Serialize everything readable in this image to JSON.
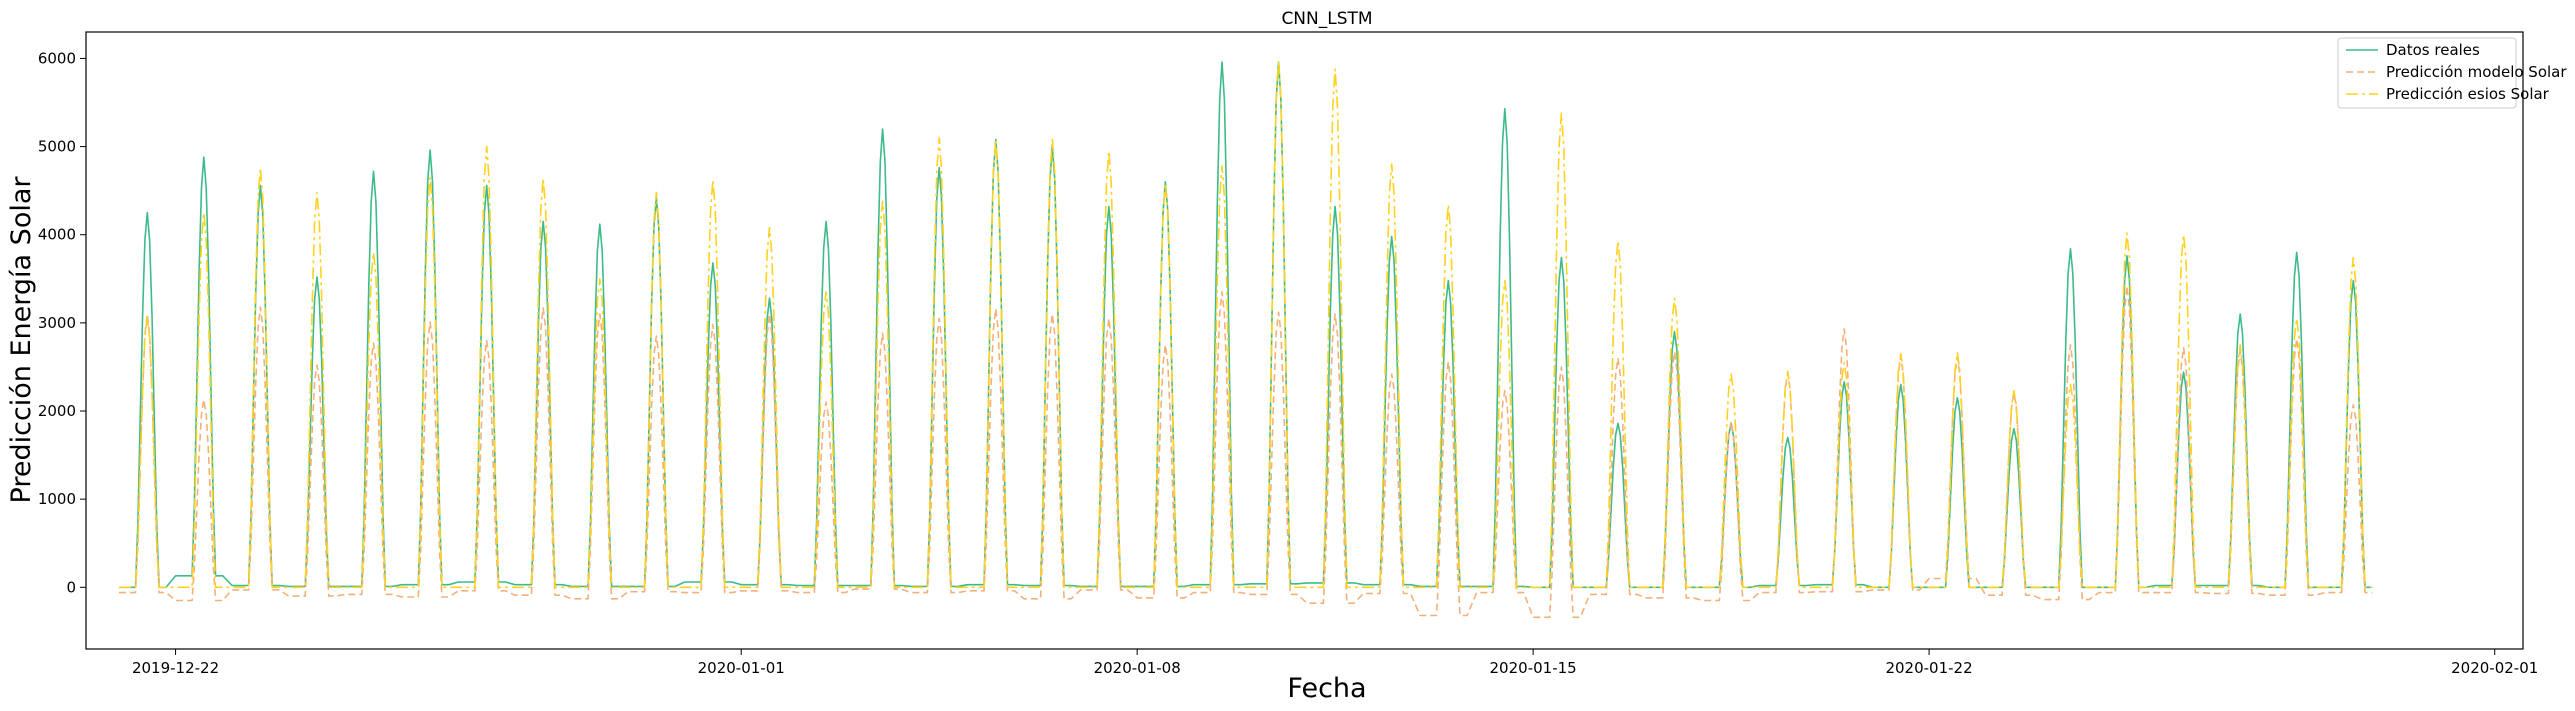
{
  "chart_data": {
    "type": "line",
    "title": "CNN_LSTM",
    "xlabel": "Fecha",
    "ylabel": "Predicción Energía Solar",
    "x_domain": [
      "2019-12-20T10:00",
      "2020-02-01T12:00"
    ],
    "ylim": [
      -700,
      6300
    ],
    "y_ticks": [
      0,
      1000,
      2000,
      3000,
      4000,
      5000,
      6000
    ],
    "x_ticks": [
      "2019-12-22",
      "2020-01-01",
      "2020-01-08",
      "2020-01-15",
      "2020-01-22",
      "2020-02-01"
    ],
    "legend_position": "top-right",
    "start_date": "2019-12-21",
    "sample_hours": [
      0,
      4,
      6,
      7,
      8,
      9,
      10,
      11,
      12,
      13,
      14,
      15,
      16,
      17,
      18,
      20
    ],
    "series": [
      {
        "name": "Datos reales",
        "color": "#3dbb8a",
        "dash": "none",
        "peaks": [
          4250,
          4880,
          4560,
          3520,
          4720,
          4960,
          4560,
          4150,
          4120,
          4420,
          3680,
          3280,
          4150,
          5200,
          4760,
          5080,
          5000,
          4320,
          4600,
          5960,
          5960,
          4320,
          3980,
          3480,
          5430,
          3740,
          1860,
          2900,
          1860,
          1700,
          2330,
          2300,
          2150,
          1800,
          3840,
          3760,
          2440,
          3100,
          3800,
          3480
        ],
        "night": [
          0,
          130,
          20,
          10,
          10,
          30,
          60,
          30,
          10,
          10,
          60,
          30,
          20,
          20,
          10,
          30,
          20,
          10,
          10,
          30,
          40,
          50,
          30,
          10,
          10,
          0,
          0,
          0,
          0,
          20,
          30,
          0,
          0,
          0,
          0,
          0,
          20,
          20,
          0,
          0
        ]
      },
      {
        "name": "Predicción modelo Solar",
        "color": "#f5b07a",
        "dash": "7,4",
        "peaks": [
          3100,
          2130,
          3180,
          2520,
          2770,
          3010,
          2800,
          3170,
          3100,
          2850,
          2980,
          3100,
          2100,
          2880,
          3050,
          3160,
          3100,
          3050,
          2750,
          3350,
          3120,
          3100,
          2420,
          2560,
          2230,
          2500,
          2600,
          2670,
          1880,
          2430,
          2930,
          2620,
          2610,
          2210,
          2750,
          3420,
          2720,
          2680,
          2820,
          2070
        ],
        "night": [
          -60,
          -150,
          -30,
          -100,
          -80,
          -110,
          -40,
          -90,
          -130,
          -50,
          -60,
          -40,
          -60,
          -20,
          -60,
          -40,
          -130,
          -30,
          -120,
          -60,
          -80,
          -180,
          -70,
          -320,
          -60,
          -340,
          -80,
          -120,
          -150,
          -60,
          -50,
          -30,
          100,
          -90,
          -140,
          -60,
          -60,
          -70,
          -90,
          -60
        ]
      },
      {
        "name": "Predicción esios Solar",
        "color": "#ffd21f",
        "dash": "12,4,3,4",
        "peaks": [
          3060,
          4250,
          4760,
          4480,
          3800,
          4650,
          5000,
          4640,
          3500,
          4480,
          4620,
          4080,
          3350,
          4380,
          5100,
          5070,
          5080,
          4950,
          4580,
          4780,
          5980,
          5880,
          4800,
          4340,
          3480,
          5380,
          3930,
          3280,
          2420,
          2450,
          2550,
          2650,
          2660,
          2230,
          2300,
          4020,
          4000,
          2750,
          3050,
          3740
        ],
        "night": [
          0,
          0,
          0,
          0,
          0,
          0,
          0,
          0,
          0,
          0,
          0,
          0,
          0,
          0,
          0,
          0,
          0,
          0,
          0,
          0,
          0,
          0,
          0,
          0,
          0,
          0,
          0,
          0,
          0,
          0,
          0,
          0,
          0,
          0,
          0,
          0,
          0,
          0,
          0,
          0
        ]
      }
    ]
  }
}
